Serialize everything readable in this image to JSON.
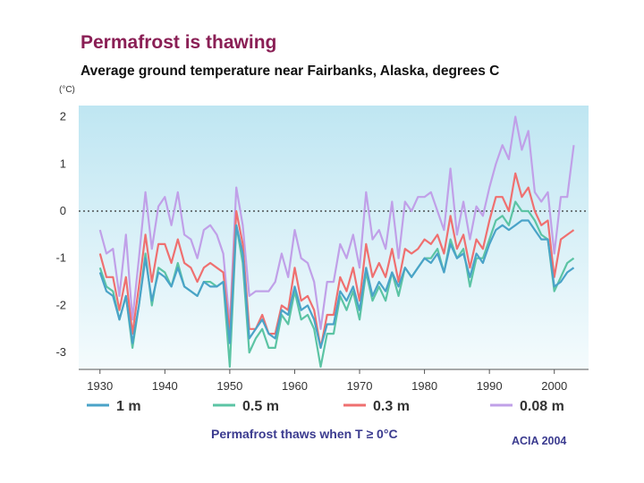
{
  "header": {
    "title": "Permafrost is thawing",
    "subtitle": "Average ground temperature near Fairbanks, Alaska, degrees C",
    "unit": "(°C)"
  },
  "footer": {
    "note": "Permafrost thaws when T ≥ 0°C",
    "source": "ACIA 2004"
  },
  "colors": {
    "bg_top": "#bfe6f2",
    "bg_bottom": "#f4fbfd",
    "zero_line": "#333333"
  },
  "chart_data": {
    "type": "line",
    "title": "Permafrost is thawing",
    "xlabel": "",
    "ylabel": "(°C)",
    "xlim": [
      1927,
      2005
    ],
    "ylim": [
      -3.3,
      2.2
    ],
    "x_ticks": [
      1930,
      1940,
      1950,
      1960,
      1970,
      1980,
      1990,
      2000
    ],
    "y_ticks": [
      2,
      1,
      0,
      -1,
      -2,
      -3
    ],
    "reference_line": 0,
    "x": [
      1930,
      1931,
      1932,
      1933,
      1934,
      1935,
      1936,
      1937,
      1938,
      1939,
      1940,
      1941,
      1942,
      1943,
      1944,
      1945,
      1946,
      1947,
      1948,
      1949,
      1950,
      1951,
      1952,
      1953,
      1954,
      1955,
      1956,
      1957,
      1958,
      1959,
      1960,
      1961,
      1962,
      1963,
      1964,
      1965,
      1966,
      1967,
      1968,
      1969,
      1970,
      1971,
      1972,
      1973,
      1974,
      1975,
      1976,
      1977,
      1978,
      1979,
      1980,
      1981,
      1982,
      1983,
      1984,
      1985,
      1986,
      1987,
      1988,
      1989,
      1990,
      1991,
      1992,
      1993,
      1994,
      1995,
      1996,
      1997,
      1998,
      1999,
      2000,
      2001,
      2002,
      2003
    ],
    "series": [
      {
        "name": "1 m",
        "color": "#4aa3c8",
        "values": [
          -1.3,
          -1.7,
          -1.8,
          -2.3,
          -1.8,
          -2.8,
          -2.0,
          -1.0,
          -1.9,
          -1.3,
          -1.4,
          -1.6,
          -1.2,
          -1.6,
          -1.7,
          -1.8,
          -1.5,
          -1.6,
          -1.6,
          -1.5,
          -2.8,
          -0.3,
          -0.9,
          -2.7,
          -2.5,
          -2.3,
          -2.6,
          -2.7,
          -2.1,
          -2.2,
          -1.6,
          -2.1,
          -2.0,
          -2.3,
          -2.9,
          -2.4,
          -2.4,
          -1.7,
          -1.9,
          -1.6,
          -2.1,
          -1.2,
          -1.8,
          -1.5,
          -1.7,
          -1.3,
          -1.6,
          -1.2,
          -1.4,
          -1.2,
          -1.0,
          -1.1,
          -0.9,
          -1.3,
          -0.7,
          -1.0,
          -0.9,
          -1.4,
          -0.9,
          -1.1,
          -0.7,
          -0.4,
          -0.3,
          -0.4,
          -0.3,
          -0.2,
          -0.2,
          -0.4,
          -0.6,
          -0.6,
          -1.6,
          -1.5,
          -1.3,
          -1.2
        ]
      },
      {
        "name": "0.5 m",
        "color": "#5cc4a4",
        "values": [
          -1.2,
          -1.6,
          -1.7,
          -2.3,
          -1.8,
          -2.9,
          -2.0,
          -0.9,
          -2.0,
          -1.2,
          -1.3,
          -1.6,
          -1.1,
          -1.6,
          -1.7,
          -1.8,
          -1.5,
          -1.5,
          -1.6,
          -1.5,
          -3.3,
          -0.3,
          -1.1,
          -3.0,
          -2.7,
          -2.5,
          -2.9,
          -2.9,
          -2.2,
          -2.4,
          -1.7,
          -2.3,
          -2.2,
          -2.5,
          -3.3,
          -2.6,
          -2.6,
          -1.8,
          -2.1,
          -1.7,
          -2.3,
          -1.3,
          -1.9,
          -1.6,
          -1.9,
          -1.3,
          -1.8,
          -1.2,
          -1.4,
          -1.2,
          -1.0,
          -1.0,
          -0.8,
          -1.3,
          -0.6,
          -1.0,
          -0.8,
          -1.6,
          -1.0,
          -1.0,
          -0.6,
          -0.2,
          -0.1,
          -0.3,
          0.2,
          0.0,
          0.0,
          -0.2,
          -0.5,
          -0.6,
          -1.7,
          -1.4,
          -1.1,
          -1.0
        ]
      },
      {
        "name": "0.3 m",
        "color": "#ef7070",
        "values": [
          -0.9,
          -1.4,
          -1.4,
          -2.1,
          -1.4,
          -2.6,
          -1.6,
          -0.5,
          -1.5,
          -0.7,
          -0.7,
          -1.1,
          -0.6,
          -1.1,
          -1.2,
          -1.5,
          -1.2,
          -1.1,
          -1.2,
          -1.3,
          -2.6,
          0.0,
          -0.7,
          -2.5,
          -2.5,
          -2.2,
          -2.6,
          -2.6,
          -2.0,
          -2.1,
          -1.2,
          -1.9,
          -1.8,
          -2.1,
          -2.9,
          -2.2,
          -2.2,
          -1.4,
          -1.7,
          -1.2,
          -1.9,
          -0.7,
          -1.4,
          -1.1,
          -1.4,
          -0.8,
          -1.5,
          -0.8,
          -0.9,
          -0.8,
          -0.6,
          -0.7,
          -0.5,
          -0.9,
          -0.1,
          -0.8,
          -0.5,
          -1.2,
          -0.6,
          -0.8,
          -0.2,
          0.3,
          0.3,
          0.0,
          0.8,
          0.3,
          0.5,
          0.0,
          -0.3,
          -0.2,
          -1.4,
          -0.6,
          -0.5,
          -0.4
        ]
      },
      {
        "name": "0.08 m",
        "color": "#c0a0e8",
        "values": [
          -0.4,
          -0.9,
          -0.8,
          -1.8,
          -0.5,
          -2.3,
          -1.0,
          0.4,
          -0.8,
          0.1,
          0.3,
          -0.3,
          0.4,
          -0.5,
          -0.6,
          -1.0,
          -0.4,
          -0.3,
          -0.5,
          -0.9,
          -2.4,
          0.5,
          -0.3,
          -1.8,
          -1.7,
          -1.7,
          -1.7,
          -1.5,
          -0.9,
          -1.4,
          -0.4,
          -1.0,
          -1.1,
          -1.5,
          -2.5,
          -1.5,
          -1.5,
          -0.7,
          -1.0,
          -0.5,
          -1.2,
          0.4,
          -0.6,
          -0.4,
          -0.8,
          0.2,
          -1.0,
          0.2,
          0.0,
          0.3,
          0.3,
          0.4,
          0.0,
          -0.4,
          0.9,
          -0.5,
          0.2,
          -0.6,
          0.1,
          -0.1,
          0.5,
          1.0,
          1.4,
          1.1,
          2.0,
          1.3,
          1.7,
          0.4,
          0.2,
          0.4,
          -0.9,
          0.3,
          0.3,
          1.4
        ]
      }
    ],
    "legend": {
      "position": "bottom",
      "items": [
        {
          "label": "1 m",
          "color": "#4aa3c8"
        },
        {
          "label": "0.5 m",
          "color": "#5cc4a4"
        },
        {
          "label": "0.3 m",
          "color": "#ef7070"
        },
        {
          "label": "0.08 m",
          "color": "#c0a0e8"
        }
      ]
    }
  }
}
